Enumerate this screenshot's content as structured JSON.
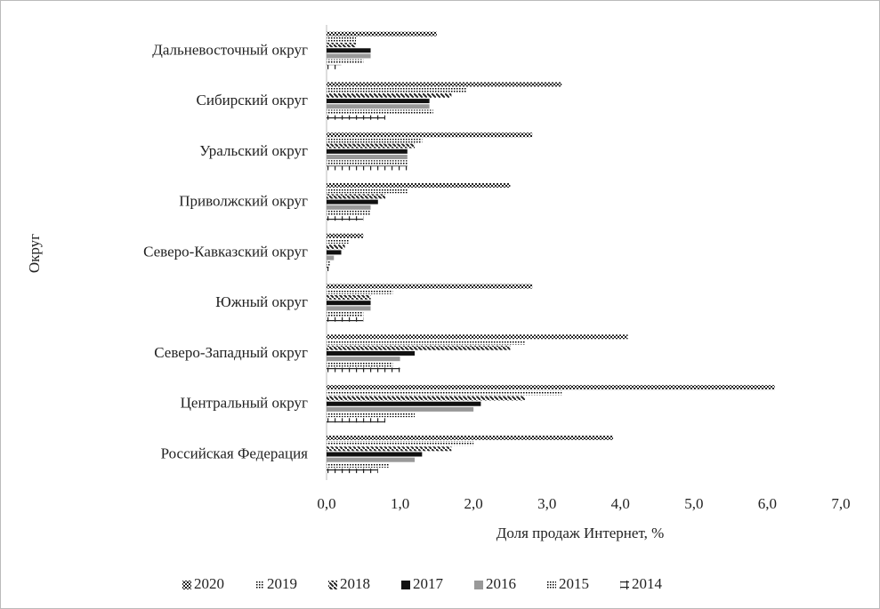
{
  "chart_data": {
    "type": "barh",
    "categories": [
      "Дальневосточный округ",
      "Сибирский  округ",
      "Уральский  округ",
      "Приволжский округ",
      "Северо-Кавказский  округ",
      "Южный округ",
      "Северо-Западный округ",
      "Центральный округ",
      "Российская Федерация"
    ],
    "series": [
      {
        "name": "2020",
        "color": "#222222",
        "pattern": "checker",
        "values": [
          1.5,
          3.2,
          2.8,
          2.5,
          0.5,
          2.8,
          4.1,
          6.1,
          3.9
        ]
      },
      {
        "name": "2019",
        "color": "#999999",
        "pattern": "dots",
        "values": [
          0.4,
          1.9,
          1.3,
          1.1,
          0.3,
          0.9,
          2.7,
          3.2,
          2.0
        ]
      },
      {
        "name": "2018",
        "color": "#222222",
        "pattern": "diagonal",
        "values": [
          0.4,
          1.7,
          1.2,
          0.8,
          0.25,
          0.6,
          2.5,
          2.7,
          1.7
        ]
      },
      {
        "name": "2017",
        "color": "#111111",
        "pattern": "solid",
        "values": [
          0.6,
          1.4,
          1.1,
          0.7,
          0.2,
          0.6,
          1.2,
          2.1,
          1.3
        ]
      },
      {
        "name": "2016",
        "color": "#999999",
        "pattern": "solid",
        "values": [
          0.6,
          1.4,
          1.1,
          0.6,
          0.1,
          0.6,
          1.0,
          2.0,
          1.2
        ]
      },
      {
        "name": "2015",
        "color": "#222222",
        "pattern": "dots",
        "values": [
          0.5,
          1.45,
          1.1,
          0.6,
          0.05,
          0.5,
          0.9,
          1.2,
          0.85
        ]
      },
      {
        "name": "2014",
        "color": "#222222",
        "pattern": "ticks",
        "values": [
          0.2,
          0.8,
          1.1,
          0.5,
          0.03,
          0.5,
          1.0,
          0.8,
          0.7
        ]
      }
    ],
    "xlabel": "Доля продаж  Интернет, %",
    "ylabel": "Округ",
    "xlim": [
      0,
      7
    ],
    "xticks": [
      {
        "value": 0,
        "label": "0,0"
      },
      {
        "value": 1,
        "label": "1,0"
      },
      {
        "value": 2,
        "label": "2,0"
      },
      {
        "value": 3,
        "label": "3,0"
      },
      {
        "value": 4,
        "label": "4,0"
      },
      {
        "value": 5,
        "label": "5,0"
      },
      {
        "value": 6,
        "label": "6,0"
      },
      {
        "value": 7,
        "label": "7,0"
      }
    ],
    "legend": "bottom"
  }
}
